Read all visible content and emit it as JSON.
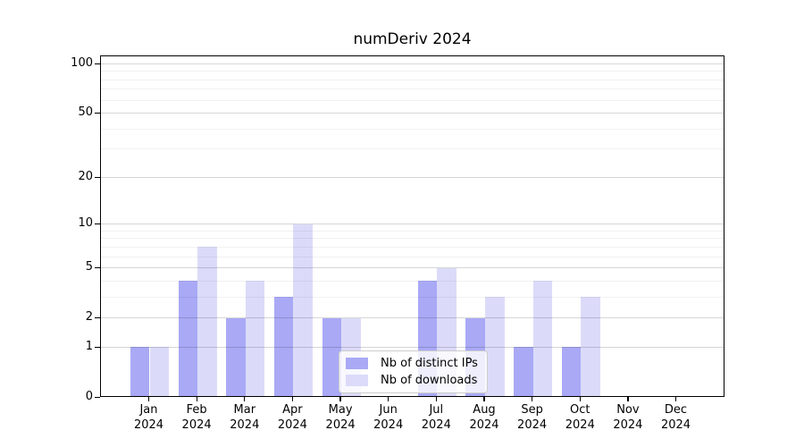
{
  "chart_data": {
    "type": "bar",
    "title": "numDeriv 2024",
    "months": [
      "Jan",
      "Feb",
      "Mar",
      "Apr",
      "May",
      "Jun",
      "Jul",
      "Aug",
      "Sep",
      "Oct",
      "Nov",
      "Dec"
    ],
    "year": "2024",
    "series": [
      {
        "name": "Nb of distinct IPs",
        "key": "distinct-ips",
        "color": "#a9a9f6",
        "values": [
          1,
          4,
          2,
          3,
          2,
          0,
          4,
          2,
          1,
          1,
          0,
          0
        ]
      },
      {
        "name": "Nb of downloads",
        "key": "downloads",
        "color": "#dbdbf9",
        "values": [
          1,
          7,
          4,
          10,
          2,
          0,
          5,
          3,
          4,
          3,
          0,
          0
        ]
      }
    ],
    "y_axis": {
      "scale": "log1p",
      "lim": [
        0,
        100
      ],
      "ticks": [
        0,
        1,
        2,
        5,
        10,
        20,
        50,
        100
      ],
      "minor_gridlines": [
        3,
        4,
        6,
        7,
        8,
        9,
        30,
        40,
        60,
        70,
        80,
        90
      ]
    },
    "legend": {
      "position": "lower center"
    },
    "grid": true,
    "colors": {
      "grid_major": "rgba(0,0,0,0.16)",
      "grid_minor": "rgba(0,0,0,0.055)",
      "axis": "#000000"
    }
  }
}
